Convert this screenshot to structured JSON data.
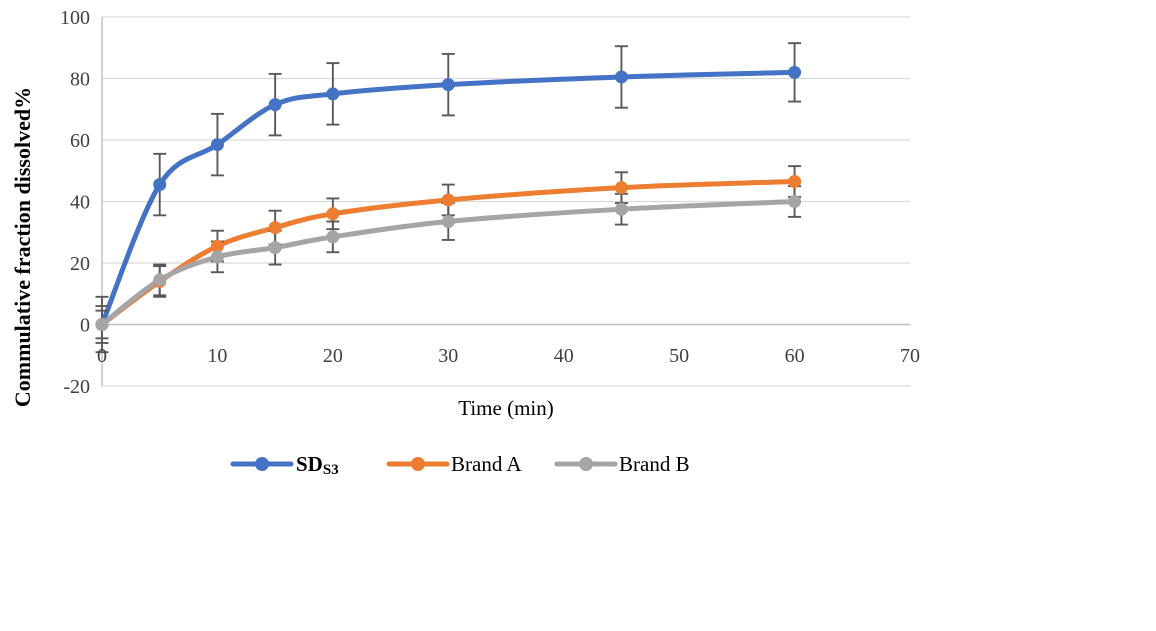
{
  "chart_data": {
    "type": "line",
    "title": "",
    "xlabel": "Time (min)",
    "ylabel": "Commulative fraction dissolved%",
    "xlim": [
      0,
      70
    ],
    "ylim": [
      -20,
      100
    ],
    "x_ticks": [
      0,
      10,
      20,
      30,
      40,
      50,
      60,
      70
    ],
    "y_ticks": [
      -20,
      0,
      20,
      40,
      60,
      80,
      100
    ],
    "grid": "horizontal",
    "legend_position": "bottom",
    "x": [
      0,
      5,
      10,
      15,
      20,
      30,
      45,
      60
    ],
    "series": [
      {
        "name": "SD",
        "name_sub": "S3",
        "color": "#4472C4",
        "bold_legend": true,
        "values": [
          0,
          45.5,
          58.5,
          71.5,
          75,
          78,
          80.5,
          82
        ],
        "errors": [
          9,
          10,
          10,
          10,
          10,
          10,
          10,
          9.5
        ]
      },
      {
        "name": "Brand A",
        "name_sub": "",
        "color": "#ED7D31",
        "bold_legend": false,
        "values": [
          0,
          14,
          25.5,
          31.5,
          36,
          40.5,
          44.5,
          46.5
        ],
        "errors": [
          6,
          5,
          5,
          5.5,
          5,
          5,
          5,
          5
        ]
      },
      {
        "name": "Brand B",
        "name_sub": "",
        "color": "#A5A5A5",
        "bold_legend": false,
        "values": [
          0,
          14.5,
          22,
          25,
          28.5,
          33.5,
          37.5,
          40
        ],
        "errors": [
          4.5,
          5,
          5,
          5.5,
          5,
          6,
          5,
          5
        ]
      }
    ],
    "styles": {
      "gridline_color": "#D9D9D9",
      "axis_line_color": "#BFBFBF",
      "error_bar_color": "#595959",
      "tick_label_color": "#404040"
    }
  }
}
